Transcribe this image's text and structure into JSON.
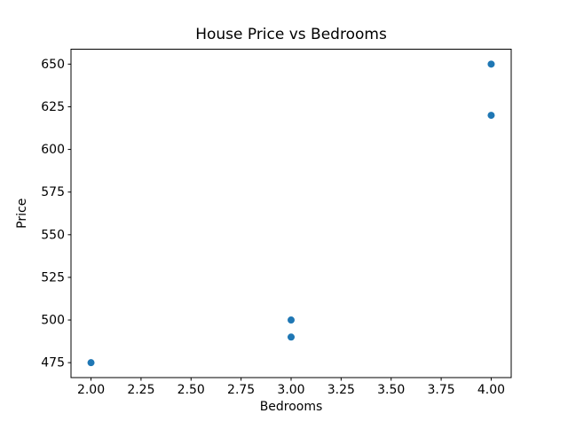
{
  "chart_data": {
    "type": "scatter",
    "title": "House Price vs Bedrooms",
    "xlabel": "Bedrooms",
    "ylabel": "Price",
    "points": [
      {
        "x": 2,
        "y": 475
      },
      {
        "x": 3,
        "y": 490
      },
      {
        "x": 3,
        "y": 500
      },
      {
        "x": 4,
        "y": 620
      },
      {
        "x": 4,
        "y": 650
      }
    ],
    "xlim": [
      1.9,
      4.1
    ],
    "ylim": [
      466.25,
      658.75
    ],
    "xticks": {
      "values": [
        2.0,
        2.25,
        2.5,
        2.75,
        3.0,
        3.25,
        3.5,
        3.75,
        4.0
      ],
      "labels": [
        "2.00",
        "2.25",
        "2.50",
        "2.75",
        "3.00",
        "3.25",
        "3.50",
        "3.75",
        "4.00"
      ]
    },
    "yticks": {
      "values": [
        475,
        500,
        525,
        550,
        575,
        600,
        625,
        650
      ],
      "labels": [
        "475",
        "500",
        "525",
        "550",
        "575",
        "600",
        "625",
        "650"
      ]
    },
    "marker_color": "#1f77b4",
    "axis_color": "#000000",
    "background": "#ffffff",
    "grid": false
  }
}
